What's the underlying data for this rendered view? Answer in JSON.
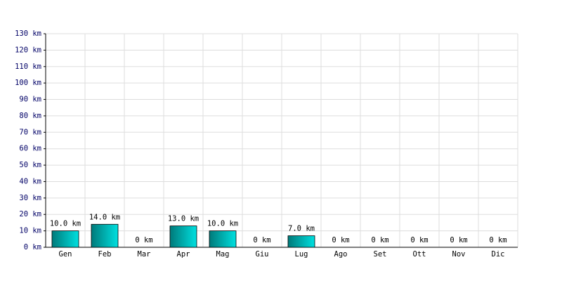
{
  "chart_data": {
    "type": "bar",
    "categories": [
      "Gen",
      "Feb",
      "Mar",
      "Apr",
      "Mag",
      "Giu",
      "Lug",
      "Ago",
      "Set",
      "Ott",
      "Nov",
      "Dic"
    ],
    "values": [
      10,
      14,
      0,
      13,
      10,
      0,
      7,
      0,
      0,
      0,
      0,
      0
    ],
    "value_labels": [
      "10.0 km",
      "14.0 km",
      "0 km",
      "13.0 km",
      "10.0 km",
      "0 km",
      "7.0 km",
      "0 km",
      "0 km",
      "0 km",
      "0 km",
      "0 km"
    ],
    "color": "#00e0e0",
    "ylim": [
      0,
      130
    ],
    "yticks": [
      {
        "value": 0,
        "label": "0 km"
      },
      {
        "value": 10,
        "label": "10 km"
      },
      {
        "value": 20,
        "label": "20 km"
      },
      {
        "value": 30,
        "label": "30 km"
      },
      {
        "value": 40,
        "label": "40 km"
      },
      {
        "value": 50,
        "label": "50 km"
      },
      {
        "value": 60,
        "label": "60 km"
      },
      {
        "value": 70,
        "label": "70 km"
      },
      {
        "value": 80,
        "label": "80 km"
      },
      {
        "value": 90,
        "label": "90 km"
      },
      {
        "value": 100,
        "label": "100 km"
      },
      {
        "value": 110,
        "label": "110 km"
      },
      {
        "value": 120,
        "label": "120 km"
      },
      {
        "value": 130,
        "label": "130 km"
      }
    ],
    "grid": true
  }
}
